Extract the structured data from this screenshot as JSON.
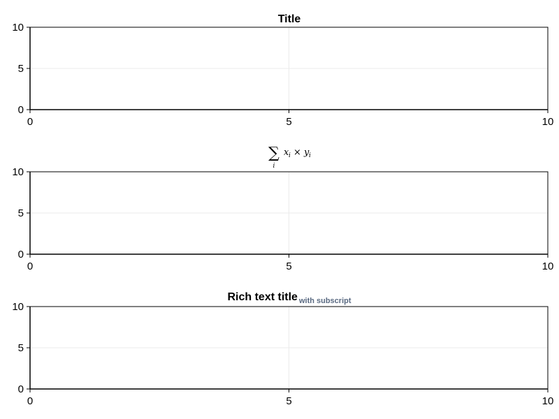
{
  "chart_data": [
    {
      "type": "line",
      "title": "Title",
      "x_ticks": [
        "0",
        "5",
        "10"
      ],
      "y_ticks": [
        "0",
        "5",
        "10"
      ],
      "xlim": [
        0,
        10
      ],
      "ylim": [
        0,
        10
      ],
      "grid": true,
      "series": []
    },
    {
      "type": "line",
      "title_math": {
        "operator": "∑",
        "index": "i",
        "x": "x",
        "times": "×",
        "y": "y",
        "sub": "i"
      },
      "x_ticks": [
        "0",
        "5",
        "10"
      ],
      "y_ticks": [
        "0",
        "5",
        "10"
      ],
      "xlim": [
        0,
        10
      ],
      "ylim": [
        0,
        10
      ],
      "grid": true,
      "series": []
    },
    {
      "type": "line",
      "title": "Rich text title",
      "subtitle": "with subscript",
      "subtitle_color": "#5a6a82",
      "x_ticks": [
        "0",
        "5",
        "10"
      ],
      "y_ticks": [
        "0",
        "5",
        "10"
      ],
      "xlim": [
        0,
        10
      ],
      "ylim": [
        0,
        10
      ],
      "grid": true,
      "series": []
    }
  ],
  "colors": {
    "axis": "#000000",
    "grid": "#ebebeb",
    "background": "#ffffff"
  }
}
